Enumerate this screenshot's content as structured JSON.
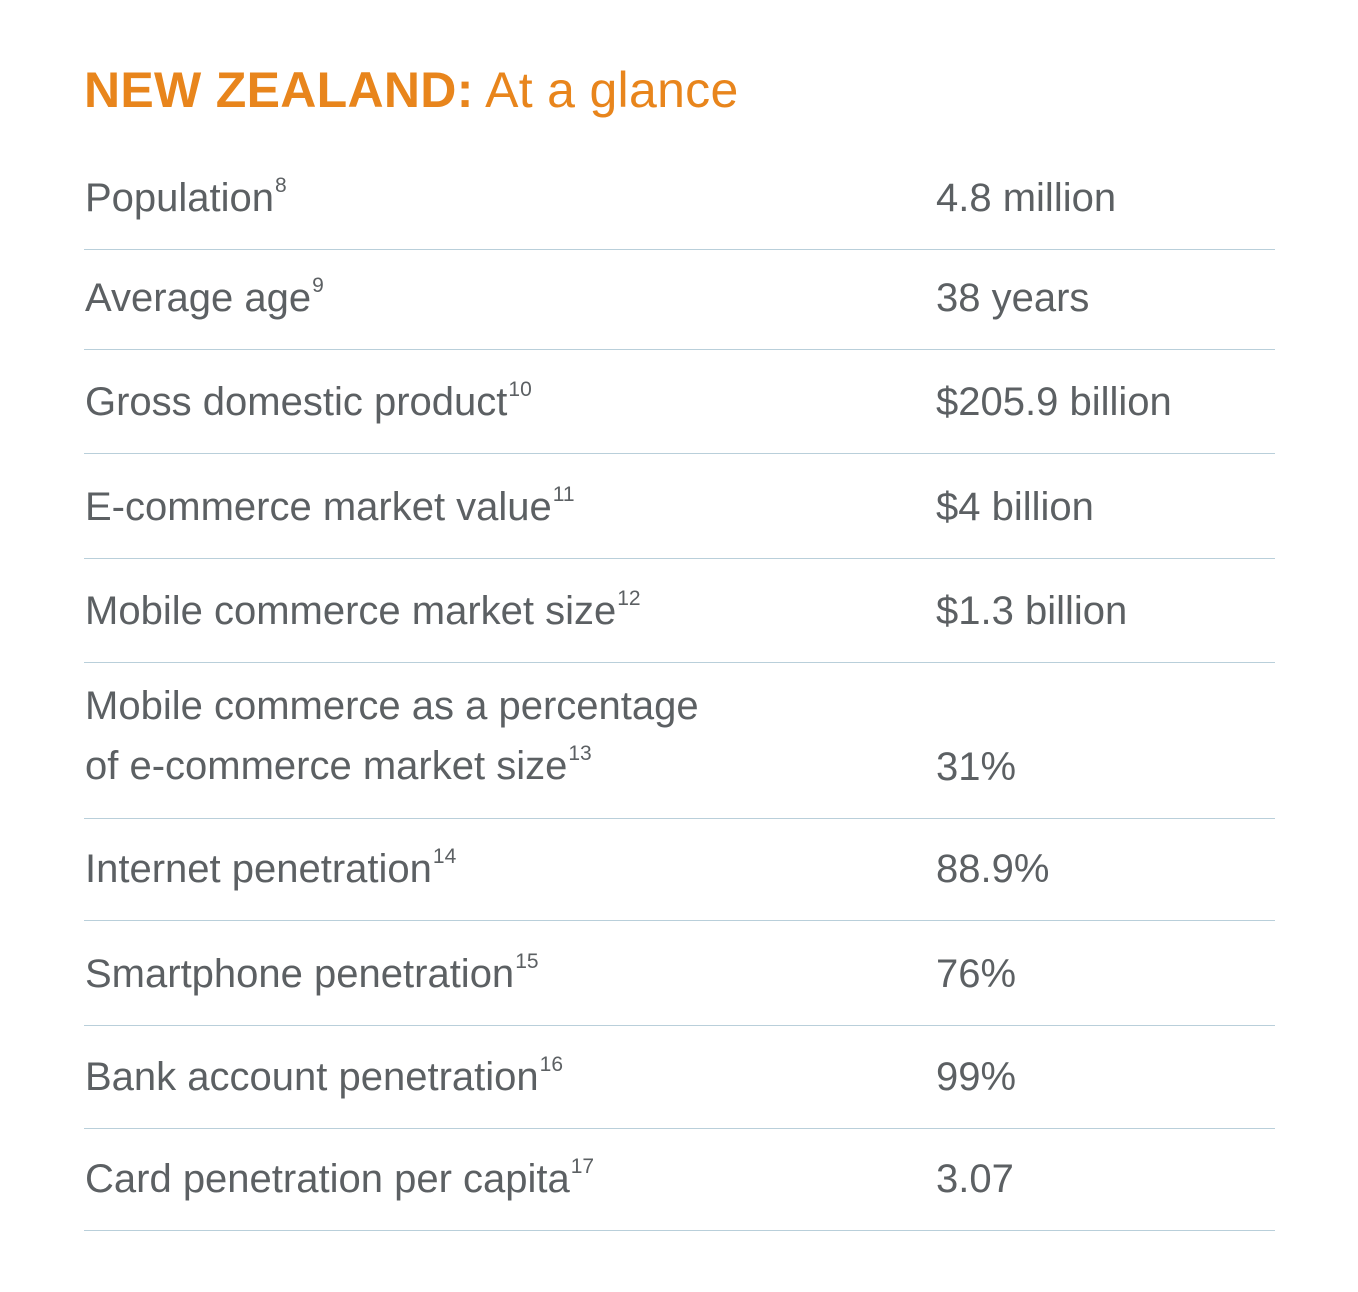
{
  "header": {
    "title_bold": "NEW ZEALAND:",
    "title_rest": "At a glance"
  },
  "colors": {
    "accent": "#e8851c",
    "text": "#5c6063",
    "divider": "#b9cfda"
  },
  "rows": [
    {
      "label": "Population",
      "ref": "8",
      "value": "4.8 million"
    },
    {
      "label": "Average age",
      "ref": "9",
      "value": "38 years"
    },
    {
      "label": "Gross domestic product",
      "ref": "10",
      "value": "$205.9 billion"
    },
    {
      "label": "E-commerce market value",
      "ref": "11",
      "value": "$4 billion"
    },
    {
      "label": "Mobile commerce market size",
      "ref": "12",
      "value": "$1.3 billion"
    },
    {
      "label_line1": "Mobile commerce as a percentage",
      "label": "of e-commerce market size",
      "ref": "13",
      "value": "31%"
    },
    {
      "label": "Internet penetration",
      "ref": "14",
      "value": "88.9%"
    },
    {
      "label": "Smartphone penetration",
      "ref": "15",
      "value": "76%"
    },
    {
      "label": "Bank account penetration",
      "ref": "16",
      "value": "99%"
    },
    {
      "label": "Card penetration per capita",
      "ref": "17",
      "value": "3.07"
    }
  ]
}
